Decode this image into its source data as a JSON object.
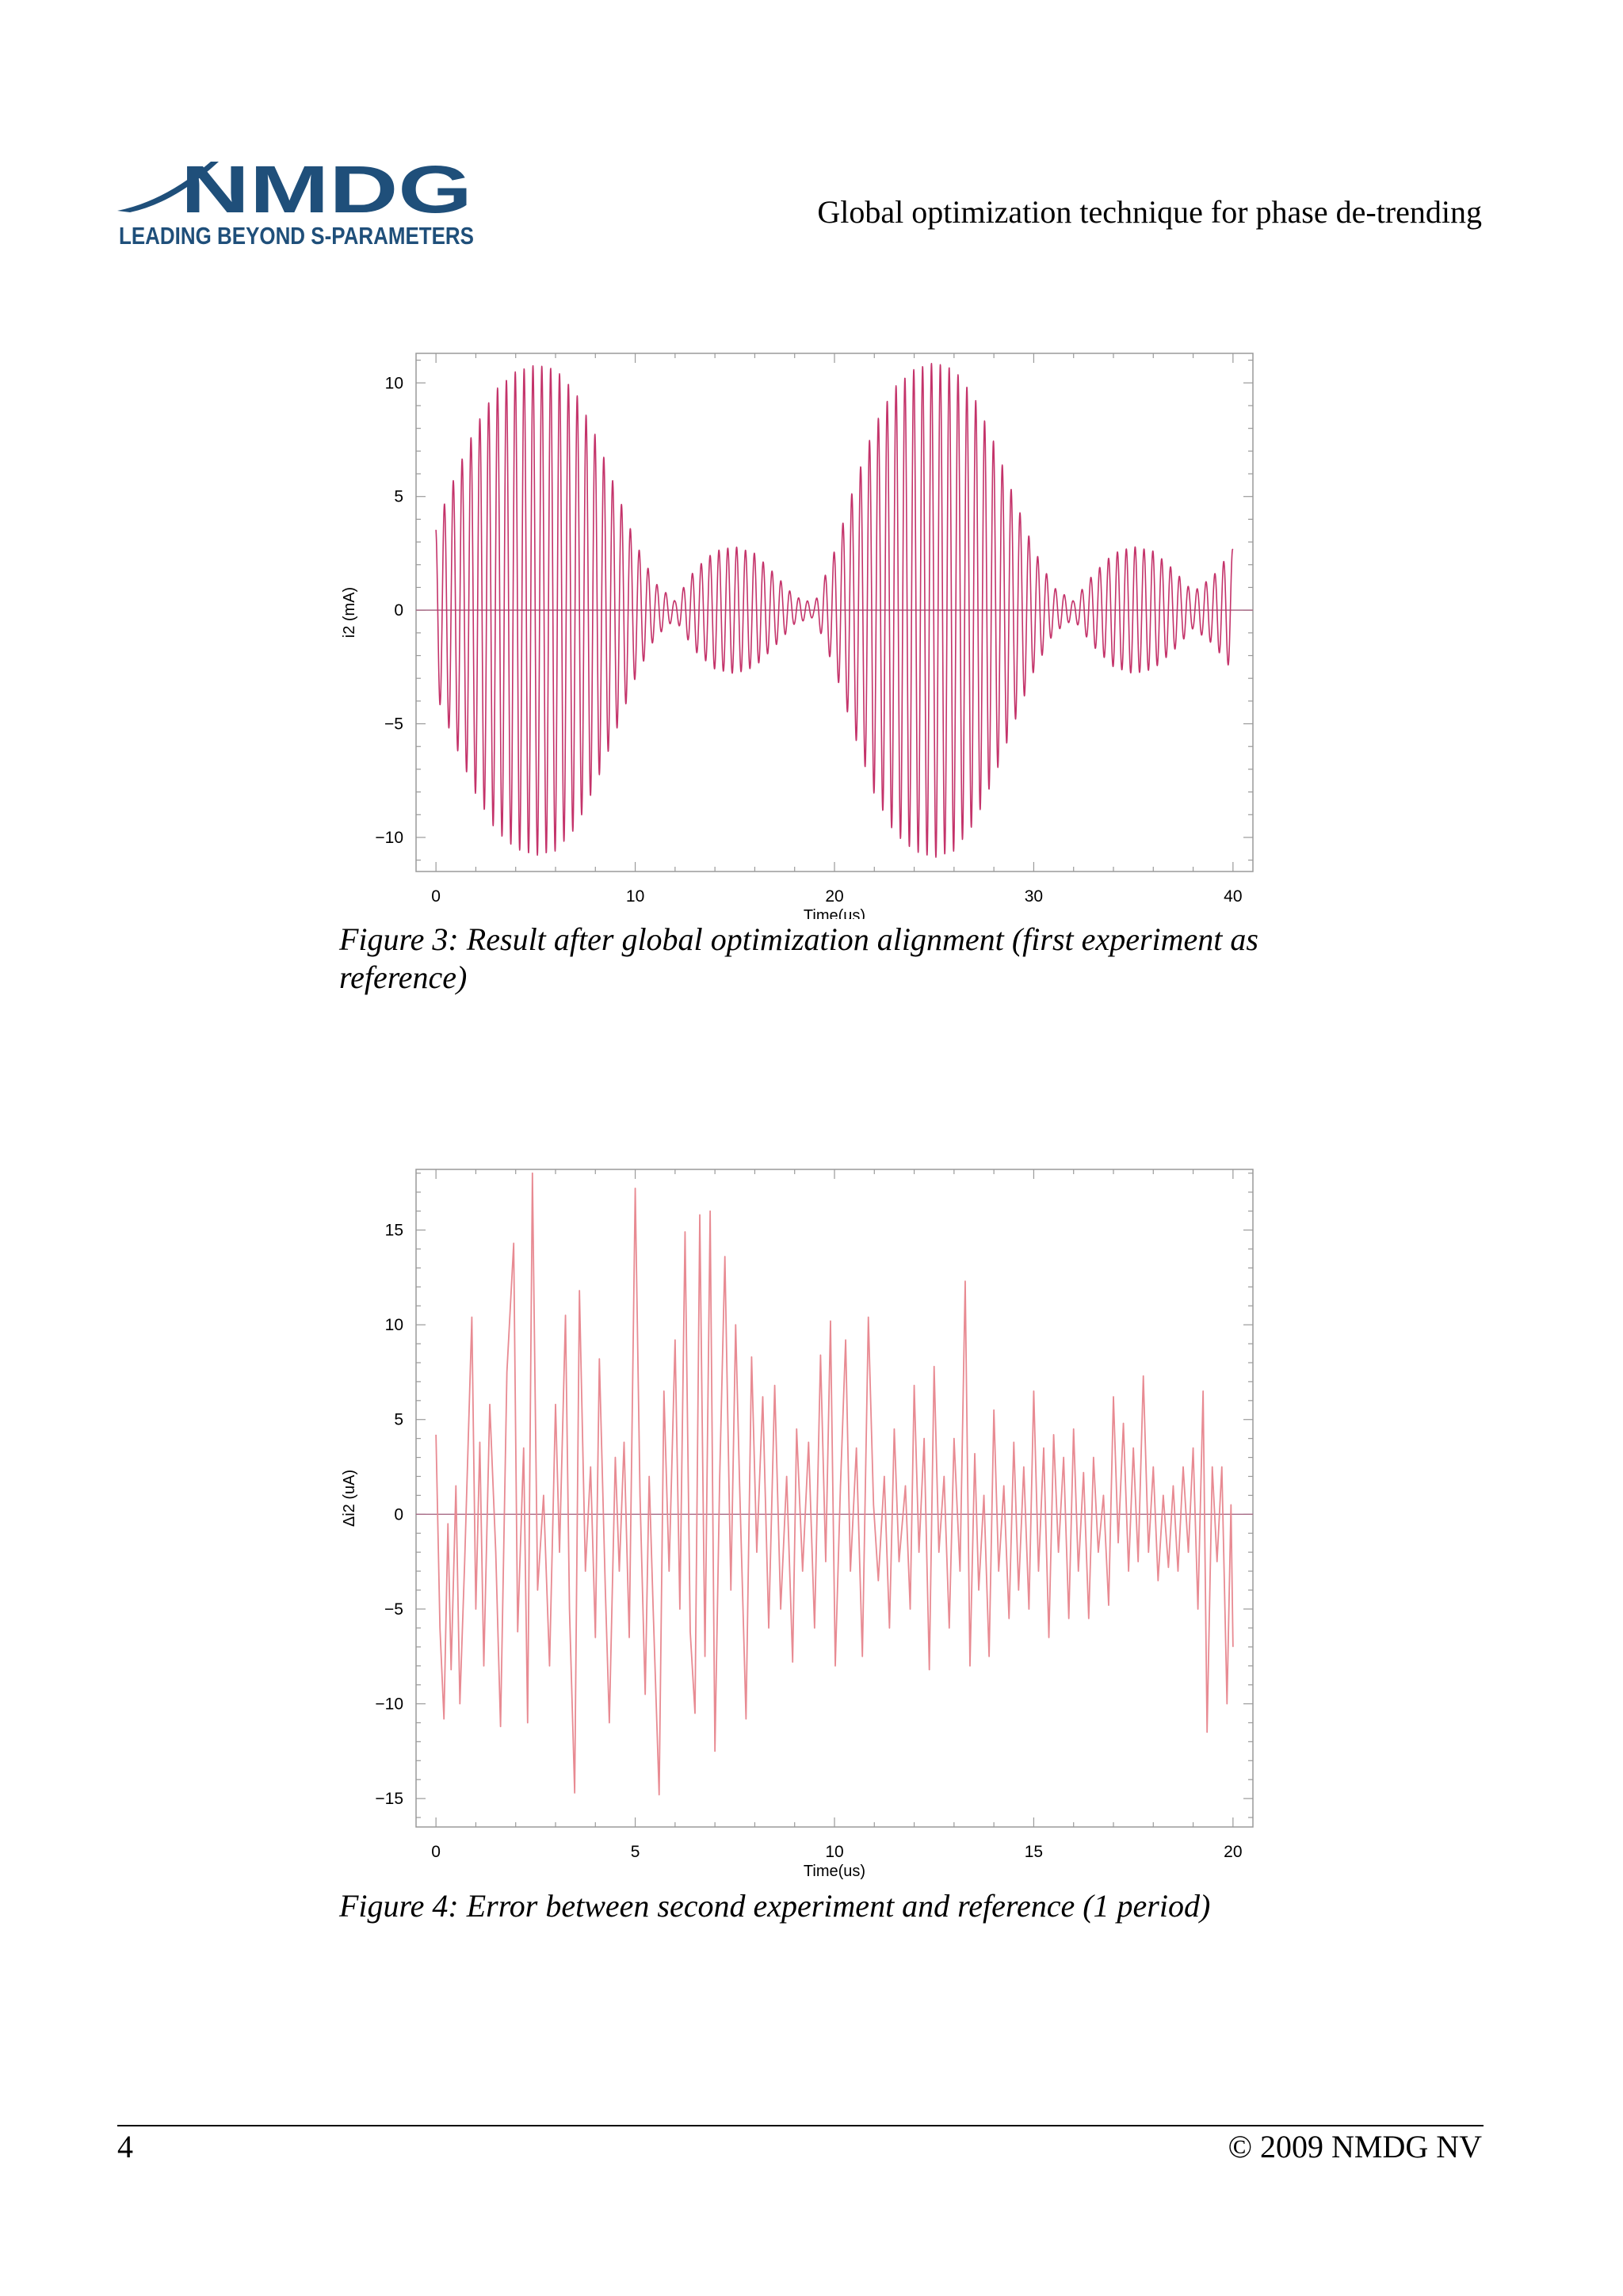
{
  "header": {
    "logo_wordmark": "NMDG",
    "logo_tagline": "LEADING BEYOND S-PARAMETERS",
    "title": "Global optimization technique for phase de-trending"
  },
  "colors": {
    "brand": "#1f4f7a",
    "trace1": "#c4336a",
    "trace2": "#e88a92",
    "zero_line": "#a86b86",
    "frame": "#9a9a9a"
  },
  "captions": {
    "figure3": "Figure 3: Result after global optimization alignment (first experiment as reference)",
    "figure4": "Figure 4: Error between second experiment and reference (1 period)"
  },
  "footer": {
    "page_number": "4",
    "copyright": "© 2009 NMDG NV"
  },
  "chart_data": [
    {
      "type": "line",
      "title": "",
      "xlabel": "Time(us)",
      "ylabel": "i2 (mA)",
      "xlim": [
        -1,
        41
      ],
      "ylim": [
        -11.5,
        11.3
      ],
      "xticks": [
        0,
        10,
        20,
        30,
        40
      ],
      "xtick_labels": [
        "0",
        "10",
        "20",
        "30",
        "40"
      ],
      "yticks": [
        10,
        5,
        0,
        -5,
        -10
      ],
      "ytick_labels": [
        "10",
        "5",
        "0",
        "−5",
        "−10"
      ],
      "grid": false,
      "zero_line": true,
      "series": [
        {
          "carrier_frequency_mhz": 2.25,
          "cycles_per_period": 45,
          "envelope_points": [
            [
              0,
              3.7
            ],
            [
              1,
              6.0
            ],
            [
              2,
              8.1
            ],
            [
              3,
              9.7
            ],
            [
              4,
              10.5
            ],
            [
              5,
              10.8
            ],
            [
              6,
              10.6
            ],
            [
              7,
              9.6
            ],
            [
              8,
              7.7
            ],
            [
              9,
              5.4
            ],
            [
              10,
              3.0
            ],
            [
              11,
              1.2
            ],
            [
              12,
              0.4
            ],
            [
              13,
              1.8
            ],
            [
              14,
              2.6
            ],
            [
              15,
              2.8
            ],
            [
              16,
              2.5
            ],
            [
              17,
              1.6
            ],
            [
              18,
              0.6
            ],
            [
              19,
              0.3
            ],
            [
              20,
              2.6
            ],
            [
              21,
              5.5
            ],
            [
              22,
              8.1
            ],
            [
              23,
              9.8
            ],
            [
              24,
              10.6
            ],
            [
              25,
              10.9
            ],
            [
              26,
              10.6
            ],
            [
              27,
              9.4
            ],
            [
              28,
              7.4
            ],
            [
              29,
              5.0
            ],
            [
              30,
              2.7
            ],
            [
              31,
              1.0
            ],
            [
              32,
              0.4
            ],
            [
              33,
              1.6
            ],
            [
              34,
              2.5
            ],
            [
              35,
              2.8
            ],
            [
              36,
              2.6
            ],
            [
              37,
              1.8
            ],
            [
              38,
              0.8
            ],
            [
              39,
              1.5
            ],
            [
              40,
              2.7
            ]
          ]
        }
      ]
    },
    {
      "type": "line",
      "title": "",
      "xlabel": "Time(us)",
      "ylabel": "Δi2 (uA)",
      "xlim": [
        -0.5,
        20.5
      ],
      "ylim": [
        -16.5,
        18.2
      ],
      "xticks": [
        0,
        5,
        10,
        15,
        20
      ],
      "xtick_labels": [
        "0",
        "5",
        "10",
        "15",
        "20"
      ],
      "yticks": [
        15,
        10,
        5,
        0,
        -5,
        -10,
        -15
      ],
      "ytick_labels": [
        "15",
        "10",
        "5",
        "0",
        "−5",
        "−10",
        "−15"
      ],
      "grid": false,
      "zero_line": true,
      "series": [
        {
          "points": [
            [
              0.0,
              4.2
            ],
            [
              0.1,
              -6.0
            ],
            [
              0.2,
              -10.8
            ],
            [
              0.3,
              -0.5
            ],
            [
              0.38,
              -8.2
            ],
            [
              0.5,
              1.5
            ],
            [
              0.6,
              -10.0
            ],
            [
              0.72,
              -2.5
            ],
            [
              0.9,
              10.4
            ],
            [
              1.0,
              -5.0
            ],
            [
              1.1,
              3.8
            ],
            [
              1.2,
              -8.0
            ],
            [
              1.35,
              5.8
            ],
            [
              1.5,
              -2.0
            ],
            [
              1.62,
              -11.2
            ],
            [
              1.78,
              7.5
            ],
            [
              1.95,
              14.3
            ],
            [
              2.05,
              -6.2
            ],
            [
              2.2,
              3.5
            ],
            [
              2.3,
              -11.0
            ],
            [
              2.42,
              18.0
            ],
            [
              2.55,
              -4.0
            ],
            [
              2.7,
              1.0
            ],
            [
              2.85,
              -8.0
            ],
            [
              3.0,
              5.8
            ],
            [
              3.1,
              -2.0
            ],
            [
              3.25,
              10.5
            ],
            [
              3.35,
              -5.0
            ],
            [
              3.48,
              -14.7
            ],
            [
              3.6,
              11.8
            ],
            [
              3.75,
              -3.0
            ],
            [
              3.88,
              2.5
            ],
            [
              4.0,
              -6.5
            ],
            [
              4.1,
              8.2
            ],
            [
              4.25,
              -4.0
            ],
            [
              4.35,
              -11.0
            ],
            [
              4.5,
              3.0
            ],
            [
              4.6,
              -3.0
            ],
            [
              4.72,
              3.8
            ],
            [
              4.85,
              -6.5
            ],
            [
              5.0,
              17.2
            ],
            [
              5.12,
              1.0
            ],
            [
              5.25,
              -9.5
            ],
            [
              5.35,
              2.0
            ],
            [
              5.45,
              -5.0
            ],
            [
              5.6,
              -14.8
            ],
            [
              5.72,
              6.5
            ],
            [
              5.85,
              -3.0
            ],
            [
              6.0,
              9.2
            ],
            [
              6.12,
              -5.0
            ],
            [
              6.25,
              14.9
            ],
            [
              6.38,
              -6.2
            ],
            [
              6.5,
              -10.5
            ],
            [
              6.62,
              15.8
            ],
            [
              6.75,
              -7.5
            ],
            [
              6.88,
              16.0
            ],
            [
              7.0,
              -12.5
            ],
            [
              7.12,
              2.0
            ],
            [
              7.25,
              13.6
            ],
            [
              7.4,
              -4.0
            ],
            [
              7.52,
              10.0
            ],
            [
              7.62,
              1.5
            ],
            [
              7.78,
              -10.8
            ],
            [
              7.92,
              8.3
            ],
            [
              8.05,
              -2.0
            ],
            [
              8.2,
              6.2
            ],
            [
              8.35,
              -6.0
            ],
            [
              8.5,
              6.8
            ],
            [
              8.65,
              -5.0
            ],
            [
              8.8,
              2.0
            ],
            [
              8.95,
              -7.8
            ],
            [
              9.05,
              4.5
            ],
            [
              9.2,
              -3.0
            ],
            [
              9.35,
              3.8
            ],
            [
              9.5,
              -6.0
            ],
            [
              9.65,
              8.4
            ],
            [
              9.78,
              -2.5
            ],
            [
              9.9,
              10.2
            ],
            [
              10.02,
              -8.0
            ],
            [
              10.15,
              1.5
            ],
            [
              10.28,
              9.2
            ],
            [
              10.4,
              -3.0
            ],
            [
              10.55,
              3.5
            ],
            [
              10.7,
              -7.5
            ],
            [
              10.85,
              10.4
            ],
            [
              10.98,
              0.5
            ],
            [
              11.1,
              -3.5
            ],
            [
              11.25,
              2.0
            ],
            [
              11.38,
              -6.0
            ],
            [
              11.5,
              4.5
            ],
            [
              11.62,
              -2.5
            ],
            [
              11.78,
              1.5
            ],
            [
              11.9,
              -5.0
            ],
            [
              12.0,
              6.8
            ],
            [
              12.12,
              -2.0
            ],
            [
              12.25,
              4.0
            ],
            [
              12.38,
              -8.2
            ],
            [
              12.5,
              7.8
            ],
            [
              12.62,
              -2.0
            ],
            [
              12.75,
              2.0
            ],
            [
              12.88,
              -6.0
            ],
            [
              13.0,
              4.0
            ],
            [
              13.15,
              -3.0
            ],
            [
              13.28,
              12.3
            ],
            [
              13.4,
              -8.0
            ],
            [
              13.52,
              3.2
            ],
            [
              13.62,
              -4.0
            ],
            [
              13.75,
              1.0
            ],
            [
              13.88,
              -7.5
            ],
            [
              14.0,
              5.5
            ],
            [
              14.12,
              -3.0
            ],
            [
              14.25,
              1.5
            ],
            [
              14.38,
              -5.5
            ],
            [
              14.5,
              3.8
            ],
            [
              14.62,
              -4.0
            ],
            [
              14.75,
              2.5
            ],
            [
              14.88,
              -5.0
            ],
            [
              15.0,
              6.5
            ],
            [
              15.12,
              -3.0
            ],
            [
              15.25,
              3.5
            ],
            [
              15.38,
              -6.5
            ],
            [
              15.5,
              4.2
            ],
            [
              15.62,
              -2.0
            ],
            [
              15.75,
              3.0
            ],
            [
              15.88,
              -5.5
            ],
            [
              16.0,
              4.5
            ],
            [
              16.12,
              -3.0
            ],
            [
              16.25,
              2.2
            ],
            [
              16.38,
              -5.5
            ],
            [
              16.5,
              3.0
            ],
            [
              16.62,
              -2.0
            ],
            [
              16.75,
              1.0
            ],
            [
              16.88,
              -4.8
            ],
            [
              17.0,
              6.2
            ],
            [
              17.12,
              -1.5
            ],
            [
              17.25,
              4.8
            ],
            [
              17.38,
              -3.0
            ],
            [
              17.5,
              3.5
            ],
            [
              17.62,
              -2.5
            ],
            [
              17.75,
              7.3
            ],
            [
              17.88,
              -2.0
            ],
            [
              18.0,
              2.5
            ],
            [
              18.12,
              -3.5
            ],
            [
              18.25,
              1.0
            ],
            [
              18.38,
              -2.8
            ],
            [
              18.5,
              1.5
            ],
            [
              18.62,
              -3.0
            ],
            [
              18.75,
              2.5
            ],
            [
              18.88,
              -2.0
            ],
            [
              19.0,
              3.5
            ],
            [
              19.12,
              -5.0
            ],
            [
              19.25,
              6.5
            ],
            [
              19.35,
              -11.5
            ],
            [
              19.48,
              2.5
            ],
            [
              19.6,
              -2.5
            ],
            [
              19.72,
              2.5
            ],
            [
              19.85,
              -10.0
            ],
            [
              19.95,
              0.5
            ],
            [
              20.0,
              -7.0
            ]
          ]
        }
      ]
    }
  ]
}
